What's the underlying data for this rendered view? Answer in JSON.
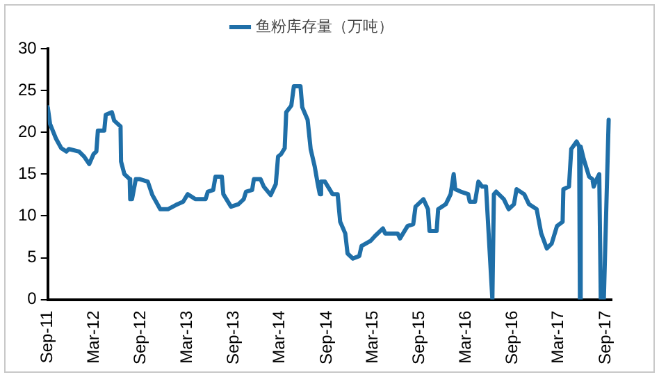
{
  "chart_data": {
    "type": "line",
    "legend": "top",
    "xlim": [
      "2011-09-01",
      "2017-09-25"
    ],
    "xticks": [
      {
        "value": "2011-09-01",
        "label": "Sep-11"
      },
      {
        "value": "2012-03-01",
        "label": "Mar-12"
      },
      {
        "value": "2012-09-01",
        "label": "Sep-12"
      },
      {
        "value": "2013-03-01",
        "label": "Mar-13"
      },
      {
        "value": "2013-09-01",
        "label": "Sep-13"
      },
      {
        "value": "2014-03-01",
        "label": "Mar-14"
      },
      {
        "value": "2014-09-01",
        "label": "Sep-14"
      },
      {
        "value": "2015-03-01",
        "label": "Mar-15"
      },
      {
        "value": "2015-09-01",
        "label": "Sep-15"
      },
      {
        "value": "2016-03-01",
        "label": "Mar-16"
      },
      {
        "value": "2016-09-01",
        "label": "Sep-16"
      },
      {
        "value": "2017-03-01",
        "label": "Mar-17"
      },
      {
        "value": "2017-09-01",
        "label": "Sep-17"
      }
    ],
    "ylim": [
      0,
      30
    ],
    "yticks": [
      0,
      5,
      10,
      15,
      20,
      25,
      30
    ],
    "series": [
      {
        "name": "鱼粉库存量（万吨）",
        "color": "#1f6fa8",
        "x": [
          "2011-09-01",
          "2011-09-10",
          "2011-10-04",
          "2011-10-24",
          "2011-11-13",
          "2011-11-23",
          "2012-01-02",
          "2012-01-22",
          "2012-02-11",
          "2012-02-28",
          "2012-03-10",
          "2012-03-16",
          "2012-04-10",
          "2012-04-16",
          "2012-05-10",
          "2012-05-19",
          "2012-06-13",
          "2012-06-15",
          "2012-06-28",
          "2012-07-19",
          "2012-07-21",
          "2012-07-28",
          "2012-08-12",
          "2012-08-28",
          "2012-09-28",
          "2012-10-16",
          "2012-11-16",
          "2012-12-16",
          "2013-01-16",
          "2013-02-14",
          "2013-03-04",
          "2013-04-03",
          "2013-05-13",
          "2013-05-22",
          "2013-06-12",
          "2013-06-21",
          "2013-07-16",
          "2013-07-22",
          "2013-08-21",
          "2013-09-19",
          "2013-10-10",
          "2013-10-19",
          "2013-11-12",
          "2013-11-19",
          "2013-12-15",
          "2013-12-28",
          "2014-01-24",
          "2014-02-13",
          "2014-02-22",
          "2014-03-06",
          "2014-03-20",
          "2014-03-26",
          "2014-04-15",
          "2014-04-25",
          "2014-05-21",
          "2014-05-28",
          "2014-06-18",
          "2014-06-30",
          "2014-07-16",
          "2014-07-28",
          "2014-08-05",
          "2014-08-10",
          "2014-08-25",
          "2014-09-24",
          "2014-10-14",
          "2014-10-24",
          "2014-11-13",
          "2014-11-22",
          "2014-12-13",
          "2015-01-07",
          "2015-01-16",
          "2015-02-20",
          "2015-03-10",
          "2015-04-10",
          "2015-04-19",
          "2015-06-07",
          "2015-06-16",
          "2015-06-28",
          "2015-07-16",
          "2015-08-07",
          "2015-08-16",
          "2015-09-16",
          "2015-10-04",
          "2015-10-10",
          "2015-11-07",
          "2015-11-13",
          "2015-12-13",
          "2016-01-01",
          "2016-01-13",
          "2016-01-19",
          "2016-02-10",
          "2016-03-10",
          "2016-03-16",
          "2016-04-06",
          "2016-04-19",
          "2016-05-04",
          "2016-05-19",
          "2016-06-13",
          "2016-06-19",
          "2016-06-28",
          "2016-07-28",
          "2016-08-16",
          "2016-09-06",
          "2016-09-16",
          "2016-10-16",
          "2016-11-04",
          "2016-12-04",
          "2016-12-22",
          "2017-01-13",
          "2017-02-01",
          "2017-02-22",
          "2017-03-16",
          "2017-03-19",
          "2017-04-10",
          "2017-04-19",
          "2017-05-10",
          "2017-05-20",
          "2017-05-23",
          "2017-05-26",
          "2017-06-07",
          "2017-06-28",
          "2017-07-11",
          "2017-07-16",
          "2017-07-28",
          "2017-08-07",
          "2017-08-13",
          "2017-08-25",
          "2017-09-13"
        ],
        "values": [
          23.0,
          21,
          19.2,
          18.1,
          17.7,
          18,
          17.7,
          17.1,
          16.2,
          17.4,
          17.7,
          20.2,
          20.2,
          22.1,
          22.4,
          21.4,
          20.7,
          16.5,
          15,
          14.4,
          12,
          12,
          14.4,
          14.4,
          14.1,
          12.5,
          10.8,
          10.8,
          11.3,
          11.7,
          12.6,
          12.0,
          12.0,
          12.9,
          13.1,
          14.7,
          14.7,
          12.6,
          11.1,
          11.4,
          12.0,
          12.9,
          13.1,
          14.4,
          14.4,
          13.5,
          12.5,
          13.8,
          17.1,
          17.4,
          18.1,
          22.4,
          23.2,
          25.5,
          25.5,
          23.0,
          21.5,
          18,
          15.9,
          13.8,
          12.6,
          14.1,
          14.1,
          12.6,
          12.6,
          9.3,
          7.9,
          5.5,
          4.9,
          5.2,
          6.4,
          7.0,
          7.6,
          8.5,
          7.9,
          7.9,
          7.3,
          7.9,
          8.8,
          9.0,
          11.1,
          12.0,
          10.8,
          8.2,
          8.2,
          10.8,
          11.4,
          12.6,
          15.0,
          13.2,
          12.9,
          12.6,
          11.7,
          11.7,
          14.1,
          13.5,
          13.5,
          0,
          12.6,
          12.9,
          12.0,
          10.8,
          11.4,
          13.2,
          12.6,
          11.4,
          10.8,
          7.9,
          6.1,
          6.7,
          8.8,
          9.3,
          13.2,
          13.5,
          18.0,
          18.9,
          18.3,
          0,
          18.3,
          16.8,
          14.7,
          14.4,
          13.5,
          14.4,
          15.0,
          0,
          0,
          21.5
        ]
      }
    ]
  }
}
